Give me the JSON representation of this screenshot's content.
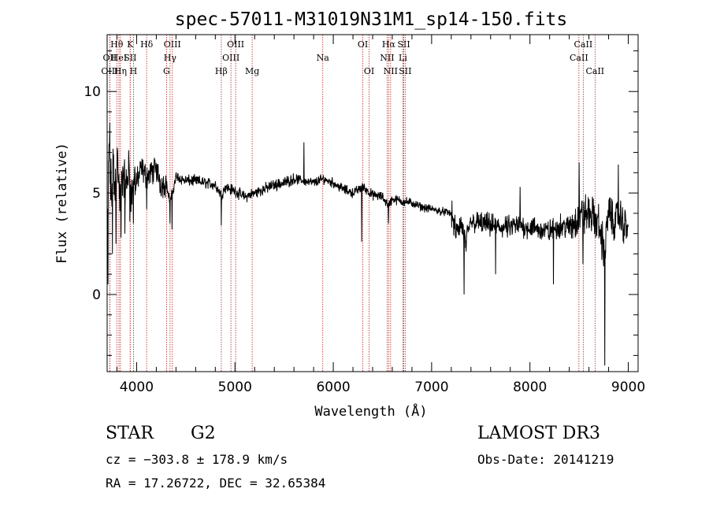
{
  "chart_data": {
    "type": "line",
    "title": "spec-57011-M31019N31M1_sp14-150.fits",
    "xlabel": "Wavelength (Å)",
    "ylabel": "Flux (relative)",
    "xlim": [
      3700,
      9100
    ],
    "ylim": [
      -3.8,
      12.8
    ],
    "x_ticks": [
      4000,
      5000,
      6000,
      7000,
      8000,
      9000
    ],
    "y_ticks": [
      0,
      5,
      10
    ],
    "line_color": "#000000",
    "marker_color": "#b22222",
    "spectrum_anchors": {
      "x": [
        3700,
        3720,
        3740,
        3760,
        3780,
        3800,
        3830,
        3860,
        3890,
        3920,
        3950,
        3980,
        4000,
        4050,
        4100,
        4150,
        4200,
        4250,
        4300,
        4340,
        4400,
        4500,
        4600,
        4700,
        4800,
        4861,
        4900,
        5000,
        5100,
        5200,
        5300,
        5400,
        5500,
        5600,
        5700,
        5800,
        5900,
        6000,
        6100,
        6200,
        6300,
        6400,
        6500,
        6563,
        6600,
        6700,
        6800,
        6900,
        7000,
        7100,
        7200,
        7250,
        7300,
        7350,
        7400,
        7500,
        7600,
        7700,
        7800,
        7900,
        8000,
        8100,
        8200,
        8300,
        8400,
        8500,
        8600,
        8700,
        8760,
        8800,
        8850,
        8900,
        8950,
        9000
      ],
      "y": [
        1.5,
        8.0,
        4.8,
        6.5,
        5.0,
        7.0,
        4.5,
        6.0,
        5.2,
        6.2,
        4.8,
        5.8,
        5.5,
        6.2,
        5.8,
        6.0,
        6.2,
        5.4,
        5.5,
        4.5,
        5.8,
        5.6,
        5.6,
        5.5,
        5.4,
        4.9,
        5.3,
        5.1,
        4.8,
        5.0,
        5.2,
        5.4,
        5.5,
        5.7,
        5.6,
        5.5,
        5.7,
        5.5,
        5.2,
        5.0,
        5.3,
        4.9,
        4.8,
        4.4,
        4.7,
        4.6,
        4.5,
        4.3,
        4.2,
        4.1,
        4.0,
        3.0,
        3.5,
        2.5,
        3.6,
        3.5,
        3.4,
        3.3,
        3.3,
        3.4,
        3.3,
        3.2,
        3.1,
        3.4,
        3.3,
        3.8,
        4.0,
        3.5,
        2.0,
        4.2,
        3.5,
        3.8,
        3.5,
        3.3
      ]
    },
    "spikes": [
      {
        "x": 3708,
        "y": 0.5
      },
      {
        "x": 3755,
        "y": 2.0
      },
      {
        "x": 3790,
        "y": 2.5
      },
      {
        "x": 3840,
        "y": 2.8
      },
      {
        "x": 3880,
        "y": 3.0
      },
      {
        "x": 3930,
        "y": 3.6
      },
      {
        "x": 3968,
        "y": 3.5
      },
      {
        "x": 4102,
        "y": 4.2
      },
      {
        "x": 4340,
        "y": 3.5
      },
      {
        "x": 4361,
        "y": 3.2
      },
      {
        "x": 4861,
        "y": 3.4
      },
      {
        "x": 5700,
        "y": 7.5
      },
      {
        "x": 6290,
        "y": 2.6
      },
      {
        "x": 6563,
        "y": 3.5
      },
      {
        "x": 7330,
        "y": 0.0
      },
      {
        "x": 7650,
        "y": 1.0
      },
      {
        "x": 7900,
        "y": 5.3
      },
      {
        "x": 8240,
        "y": 0.5
      },
      {
        "x": 8500,
        "y": 6.5
      },
      {
        "x": 8540,
        "y": 1.5
      },
      {
        "x": 8760,
        "y": -3.5
      },
      {
        "x": 8900,
        "y": 6.4
      }
    ],
    "line_markers": [
      {
        "label": "OII",
        "x": 3727,
        "row": 2
      },
      {
        "label": "OIII",
        "x": 3727,
        "row": 4
      },
      {
        "label": "Hθ",
        "x": 3798,
        "row": 1
      },
      {
        "label": "HeI",
        "x": 3820,
        "row": 2
      },
      {
        "label": "Hη",
        "x": 3835,
        "row": 3
      },
      {
        "label": "K",
        "x": 3934,
        "row": 1
      },
      {
        "label": "SII",
        "x": 3935,
        "row": 2
      },
      {
        "label": "H",
        "x": 3968,
        "row": 3
      },
      {
        "label": "Hδ",
        "x": 4102,
        "row": 1
      },
      {
        "label": "OIII",
        "x": 4363,
        "row": 1
      },
      {
        "label": "Hγ",
        "x": 4340,
        "row": 2
      },
      {
        "label": "G",
        "x": 4304,
        "row": 3
      },
      {
        "label": "Hβ",
        "x": 4861,
        "row": 3
      },
      {
        "label": "OIII",
        "x": 5007,
        "row": 1
      },
      {
        "label": "OIII",
        "x": 4959,
        "row": 2
      },
      {
        "label": "Mg",
        "x": 5175,
        "row": 3
      },
      {
        "label": "Na",
        "x": 5893,
        "row": 2
      },
      {
        "label": "OI",
        "x": 6300,
        "row": 1
      },
      {
        "label": "OI",
        "x": 6364,
        "row": 3
      },
      {
        "label": "Hα",
        "x": 6563,
        "row": 1
      },
      {
        "label": "NII",
        "x": 6548,
        "row": 2
      },
      {
        "label": "NII",
        "x": 6583,
        "row": 3
      },
      {
        "label": "SII",
        "x": 6717,
        "row": 1
      },
      {
        "label": "Li",
        "x": 6708,
        "row": 2
      },
      {
        "label": "SII",
        "x": 6731,
        "row": 3
      },
      {
        "label": "CaII",
        "x": 8542,
        "row": 1
      },
      {
        "label": "CaII",
        "x": 8498,
        "row": 2
      },
      {
        "label": "CaII",
        "x": 8662,
        "row": 3
      }
    ]
  },
  "info": {
    "object_class": "STAR",
    "subclass": "G2",
    "survey": "LAMOST DR3",
    "cz_line": "cz = −303.8 ± 178.9 km/s",
    "obs_date_line": "Obs-Date: 20141219",
    "radec_line": "RA =  17.26722, DEC =  32.65384"
  }
}
